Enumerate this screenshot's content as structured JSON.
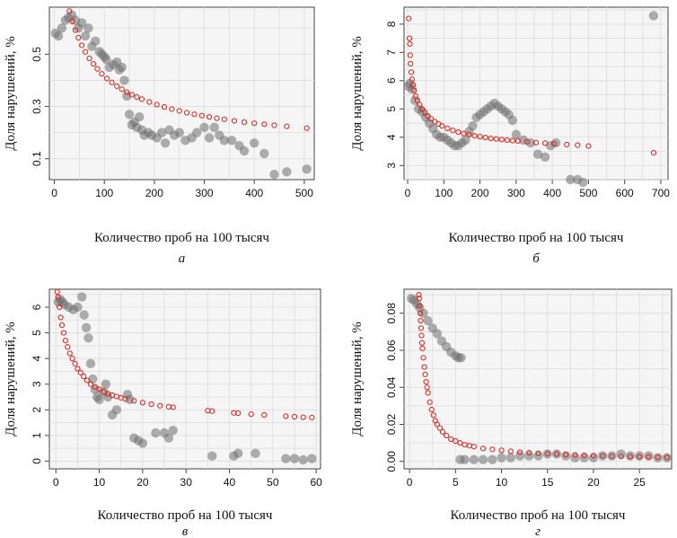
{
  "figure": {
    "colors": {
      "gray": "#6e6e6e",
      "red": "#e0201b",
      "grid": "#dcdcdc",
      "panel_bg": "#f5f5f5",
      "frame": "#444444"
    }
  },
  "chart_data": [
    {
      "id": "a",
      "type": "scatter",
      "panel_label": "а",
      "xlabel": "Количество проб на 100 тысяч",
      "ylabel": "Доля нарушений, %",
      "xlim": [
        -10,
        520
      ],
      "ylim": [
        0.02,
        0.68
      ],
      "xticks": [
        0,
        100,
        200,
        300,
        400,
        500
      ],
      "yticks": [
        0.1,
        0.3,
        0.5
      ],
      "gray_points": [
        [
          2,
          0.58
        ],
        [
          8,
          0.57
        ],
        [
          15,
          0.6
        ],
        [
          22,
          0.63
        ],
        [
          28,
          0.64
        ],
        [
          35,
          0.65
        ],
        [
          42,
          0.63
        ],
        [
          48,
          0.6
        ],
        [
          55,
          0.62
        ],
        [
          62,
          0.57
        ],
        [
          68,
          0.6
        ],
        [
          75,
          0.53
        ],
        [
          82,
          0.55
        ],
        [
          90,
          0.51
        ],
        [
          95,
          0.5
        ],
        [
          100,
          0.49
        ],
        [
          104,
          0.48
        ],
        [
          110,
          0.45
        ],
        [
          118,
          0.46
        ],
        [
          125,
          0.47
        ],
        [
          130,
          0.44
        ],
        [
          135,
          0.45
        ],
        [
          140,
          0.4
        ],
        [
          145,
          0.34
        ],
        [
          150,
          0.27
        ],
        [
          155,
          0.23
        ],
        [
          160,
          0.24
        ],
        [
          165,
          0.22
        ],
        [
          170,
          0.26
        ],
        [
          175,
          0.21
        ],
        [
          180,
          0.19
        ],
        [
          188,
          0.2
        ],
        [
          195,
          0.19
        ],
        [
          205,
          0.18
        ],
        [
          215,
          0.2
        ],
        [
          222,
          0.16
        ],
        [
          230,
          0.21
        ],
        [
          240,
          0.19
        ],
        [
          250,
          0.2
        ],
        [
          262,
          0.17
        ],
        [
          275,
          0.18
        ],
        [
          285,
          0.2
        ],
        [
          300,
          0.22
        ],
        [
          310,
          0.18
        ],
        [
          320,
          0.22
        ],
        [
          330,
          0.19
        ],
        [
          340,
          0.17
        ],
        [
          355,
          0.17
        ],
        [
          370,
          0.15
        ],
        [
          380,
          0.13
        ],
        [
          400,
          0.16
        ],
        [
          420,
          0.12
        ],
        [
          440,
          0.04
        ],
        [
          465,
          0.05
        ],
        [
          505,
          0.06
        ]
      ],
      "fit_points": [
        [
          30,
          0.665
        ],
        [
          36,
          0.625
        ],
        [
          42,
          0.592
        ],
        [
          48,
          0.563
        ],
        [
          55,
          0.534
        ],
        [
          62,
          0.509
        ],
        [
          70,
          0.484
        ],
        [
          78,
          0.463
        ],
        [
          86,
          0.444
        ],
        [
          95,
          0.425
        ],
        [
          105,
          0.407
        ],
        [
          115,
          0.392
        ],
        [
          125,
          0.378
        ],
        [
          135,
          0.366
        ],
        [
          145,
          0.355
        ],
        [
          155,
          0.345
        ],
        [
          165,
          0.336
        ],
        [
          175,
          0.328
        ],
        [
          190,
          0.317
        ],
        [
          205,
          0.307
        ],
        [
          220,
          0.298
        ],
        [
          235,
          0.29
        ],
        [
          250,
          0.283
        ],
        [
          265,
          0.276
        ],
        [
          280,
          0.27
        ],
        [
          295,
          0.265
        ],
        [
          310,
          0.26
        ],
        [
          325,
          0.255
        ],
        [
          340,
          0.251
        ],
        [
          360,
          0.245
        ],
        [
          380,
          0.24
        ],
        [
          400,
          0.236
        ],
        [
          420,
          0.232
        ],
        [
          440,
          0.228
        ],
        [
          465,
          0.224
        ],
        [
          505,
          0.217
        ]
      ]
    },
    {
      "id": "b",
      "type": "scatter",
      "panel_label": "б",
      "xlabel": "Количество проб на 100 тысяч",
      "ylabel": "Доля нарушений, %",
      "xlim": [
        -10,
        720
      ],
      "ylim": [
        2.5,
        8.6
      ],
      "xticks": [
        0,
        100,
        200,
        300,
        400,
        500,
        600,
        700
      ],
      "yticks": [
        3,
        4,
        5,
        6,
        7,
        8
      ],
      "gray_points": [
        [
          2,
          5.8
        ],
        [
          6,
          5.9
        ],
        [
          12,
          5.7
        ],
        [
          20,
          5.3
        ],
        [
          30,
          5.0
        ],
        [
          40,
          4.9
        ],
        [
          50,
          4.7
        ],
        [
          60,
          4.5
        ],
        [
          70,
          4.3
        ],
        [
          80,
          4.1
        ],
        [
          90,
          4.0
        ],
        [
          100,
          4.0
        ],
        [
          110,
          3.9
        ],
        [
          120,
          3.8
        ],
        [
          130,
          3.7
        ],
        [
          140,
          3.7
        ],
        [
          150,
          3.8
        ],
        [
          160,
          3.9
        ],
        [
          170,
          4.2
        ],
        [
          180,
          4.4
        ],
        [
          190,
          4.7
        ],
        [
          200,
          4.8
        ],
        [
          210,
          4.9
        ],
        [
          220,
          5.0
        ],
        [
          230,
          5.1
        ],
        [
          240,
          5.2
        ],
        [
          250,
          5.1
        ],
        [
          260,
          5.0
        ],
        [
          270,
          4.9
        ],
        [
          280,
          4.8
        ],
        [
          290,
          4.6
        ],
        [
          300,
          4.1
        ],
        [
          320,
          3.9
        ],
        [
          340,
          3.8
        ],
        [
          360,
          3.4
        ],
        [
          380,
          3.3
        ],
        [
          395,
          3.7
        ],
        [
          410,
          3.8
        ],
        [
          450,
          2.5
        ],
        [
          470,
          2.5
        ],
        [
          485,
          2.4
        ],
        [
          680,
          8.3
        ]
      ],
      "fit_points": [
        [
          3,
          8.2
        ],
        [
          5,
          7.5
        ],
        [
          6,
          7.3
        ],
        [
          7,
          6.9
        ],
        [
          8,
          6.6
        ],
        [
          10,
          6.3
        ],
        [
          12,
          6.05
        ],
        [
          15,
          5.85
        ],
        [
          18,
          5.65
        ],
        [
          22,
          5.45
        ],
        [
          27,
          5.3
        ],
        [
          33,
          5.15
        ],
        [
          40,
          5.0
        ],
        [
          48,
          4.87
        ],
        [
          56,
          4.75
        ],
        [
          65,
          4.65
        ],
        [
          75,
          4.55
        ],
        [
          85,
          4.47
        ],
        [
          95,
          4.4
        ],
        [
          110,
          4.31
        ],
        [
          125,
          4.24
        ],
        [
          140,
          4.18
        ],
        [
          155,
          4.13
        ],
        [
          170,
          4.09
        ],
        [
          185,
          4.05
        ],
        [
          200,
          4.02
        ],
        [
          215,
          3.99
        ],
        [
          230,
          3.96
        ],
        [
          245,
          3.94
        ],
        [
          260,
          3.92
        ],
        [
          275,
          3.9
        ],
        [
          290,
          3.88
        ],
        [
          305,
          3.87
        ],
        [
          330,
          3.84
        ],
        [
          355,
          3.81
        ],
        [
          380,
          3.79
        ],
        [
          405,
          3.77
        ],
        [
          440,
          3.74
        ],
        [
          470,
          3.72
        ],
        [
          500,
          3.69
        ],
        [
          680,
          3.45
        ]
      ]
    },
    {
      "id": "c",
      "type": "scatter",
      "panel_label": "в",
      "xlabel": "Количество проб на 100 тысяч",
      "ylabel": "Доля нарушений, %",
      "xlim": [
        -1.5,
        61
      ],
      "ylim": [
        -0.3,
        6.7
      ],
      "xticks": [
        0,
        10,
        20,
        30,
        40,
        50,
        60
      ],
      "yticks": [
        0,
        1,
        2,
        3,
        4,
        5,
        6
      ],
      "gray_points": [
        [
          0.5,
          6.2
        ],
        [
          1,
          6.3
        ],
        [
          1.5,
          6.2
        ],
        [
          2,
          6.1
        ],
        [
          3,
          6.0
        ],
        [
          4,
          5.9
        ],
        [
          5,
          6.0
        ],
        [
          6,
          6.4
        ],
        [
          6.5,
          5.7
        ],
        [
          7,
          5.2
        ],
        [
          7.5,
          4.8
        ],
        [
          8,
          3.8
        ],
        [
          8.5,
          3.2
        ],
        [
          9,
          2.8
        ],
        [
          9.5,
          2.5
        ],
        [
          10,
          2.4
        ],
        [
          11,
          2.7
        ],
        [
          11.5,
          3.0
        ],
        [
          12,
          2.5
        ],
        [
          13,
          1.8
        ],
        [
          14,
          2.0
        ],
        [
          16.5,
          2.6
        ],
        [
          17,
          2.4
        ],
        [
          18,
          0.9
        ],
        [
          19,
          0.8
        ],
        [
          20,
          0.7
        ],
        [
          23,
          1.1
        ],
        [
          25,
          1.1
        ],
        [
          26,
          0.9
        ],
        [
          27,
          1.2
        ],
        [
          36,
          0.2
        ],
        [
          41,
          0.2
        ],
        [
          42,
          0.3
        ],
        [
          46,
          0.3
        ],
        [
          53,
          0.1
        ],
        [
          55,
          0.1
        ],
        [
          57,
          0.05
        ],
        [
          59,
          0.1
        ]
      ],
      "fit_points": [
        [
          0.3,
          6.6
        ],
        [
          0.5,
          6.4
        ],
        [
          0.8,
          6.0
        ],
        [
          1.1,
          5.6
        ],
        [
          1.4,
          5.3
        ],
        [
          1.8,
          5.0
        ],
        [
          2.2,
          4.7
        ],
        [
          2.7,
          4.45
        ],
        [
          3.2,
          4.2
        ],
        [
          3.8,
          4.0
        ],
        [
          4.4,
          3.8
        ],
        [
          5.0,
          3.6
        ],
        [
          5.7,
          3.45
        ],
        [
          6.4,
          3.3
        ],
        [
          7.2,
          3.15
        ],
        [
          8.0,
          3.0
        ],
        [
          9.0,
          2.9
        ],
        [
          10.0,
          2.8
        ],
        [
          11,
          2.7
        ],
        [
          12,
          2.63
        ],
        [
          13,
          2.57
        ],
        [
          14,
          2.52
        ],
        [
          15,
          2.47
        ],
        [
          16,
          2.42
        ],
        [
          18,
          2.35
        ],
        [
          20,
          2.28
        ],
        [
          22,
          2.22
        ],
        [
          24,
          2.16
        ],
        [
          26,
          2.12
        ],
        [
          27,
          2.1
        ],
        [
          35,
          1.97
        ],
        [
          36,
          1.95
        ],
        [
          41,
          1.88
        ],
        [
          42,
          1.87
        ],
        [
          45,
          1.83
        ],
        [
          48,
          1.8
        ],
        [
          53,
          1.75
        ],
        [
          55,
          1.73
        ],
        [
          57,
          1.71
        ],
        [
          59,
          1.7
        ]
      ]
    },
    {
      "id": "d",
      "type": "scatter",
      "panel_label": "г",
      "xlabel": "Количество проб на 100 тысяч",
      "ylabel": "Доля нарушений, %",
      "xlim": [
        -0.6,
        28.5
      ],
      "ylim": [
        -0.004,
        0.093
      ],
      "xticks": [
        0,
        5,
        10,
        15,
        20,
        25
      ],
      "yticks": [
        0.0,
        0.02,
        0.04,
        0.06,
        0.08
      ],
      "ytick_labels": [
        "0.00",
        "0.02",
        "0.04",
        "0.06",
        "0.08"
      ],
      "gray_points": [
        [
          0.2,
          0.088
        ],
        [
          0.5,
          0.087
        ],
        [
          0.8,
          0.085
        ],
        [
          1.1,
          0.083
        ],
        [
          1.5,
          0.08
        ],
        [
          2.0,
          0.076
        ],
        [
          2.5,
          0.072
        ],
        [
          3.0,
          0.069
        ],
        [
          3.5,
          0.065
        ],
        [
          4.0,
          0.062
        ],
        [
          4.5,
          0.059
        ],
        [
          5.0,
          0.057
        ],
        [
          5.3,
          0.056
        ],
        [
          5.6,
          0.056
        ],
        [
          5.5,
          0.001
        ],
        [
          6,
          0.001
        ],
        [
          7,
          0.001
        ],
        [
          8,
          0.001
        ],
        [
          9,
          0.001
        ],
        [
          10,
          0.002
        ],
        [
          11,
          0.002
        ],
        [
          12,
          0.003
        ],
        [
          13,
          0.003
        ],
        [
          14,
          0.003
        ],
        [
          15,
          0.004
        ],
        [
          16,
          0.004
        ],
        [
          17,
          0.003
        ],
        [
          18,
          0.002
        ],
        [
          19,
          0.002
        ],
        [
          20,
          0.002
        ],
        [
          21,
          0.003
        ],
        [
          22,
          0.003
        ],
        [
          23,
          0.004
        ],
        [
          24,
          0.003
        ],
        [
          25,
          0.003
        ],
        [
          26,
          0.003
        ],
        [
          27,
          0.002
        ],
        [
          28,
          0.002
        ]
      ],
      "fit_points": [
        [
          1.0,
          0.09
        ],
        [
          1.05,
          0.088
        ],
        [
          1.1,
          0.084
        ],
        [
          1.15,
          0.08
        ],
        [
          1.2,
          0.076
        ],
        [
          1.25,
          0.072
        ],
        [
          1.3,
          0.068
        ],
        [
          1.35,
          0.064
        ],
        [
          1.4,
          0.061
        ],
        [
          1.5,
          0.056
        ],
        [
          1.6,
          0.051
        ],
        [
          1.7,
          0.047
        ],
        [
          1.8,
          0.043
        ],
        [
          1.9,
          0.04
        ],
        [
          2.0,
          0.037
        ],
        [
          2.2,
          0.032
        ],
        [
          2.4,
          0.028
        ],
        [
          2.6,
          0.025
        ],
        [
          2.8,
          0.022
        ],
        [
          3.0,
          0.02
        ],
        [
          3.3,
          0.018
        ],
        [
          3.6,
          0.016
        ],
        [
          4.0,
          0.014
        ],
        [
          4.5,
          0.012
        ],
        [
          5.0,
          0.011
        ],
        [
          5.5,
          0.01
        ],
        [
          6.0,
          0.009
        ],
        [
          6.5,
          0.0085
        ],
        [
          7,
          0.008
        ],
        [
          8,
          0.007
        ],
        [
          9,
          0.0065
        ],
        [
          10,
          0.006
        ],
        [
          11,
          0.0055
        ],
        [
          12,
          0.005
        ],
        [
          13,
          0.0047
        ],
        [
          14,
          0.0044
        ],
        [
          15,
          0.0042
        ],
        [
          16,
          0.004
        ],
        [
          17,
          0.0037
        ],
        [
          18,
          0.0035
        ],
        [
          19,
          0.0033
        ],
        [
          20,
          0.0031
        ],
        [
          21,
          0.003
        ],
        [
          22,
          0.0028
        ],
        [
          23,
          0.0027
        ],
        [
          24,
          0.0026
        ],
        [
          25,
          0.0025
        ],
        [
          26,
          0.0024
        ],
        [
          27,
          0.0023
        ],
        [
          28,
          0.0022
        ]
      ]
    }
  ]
}
